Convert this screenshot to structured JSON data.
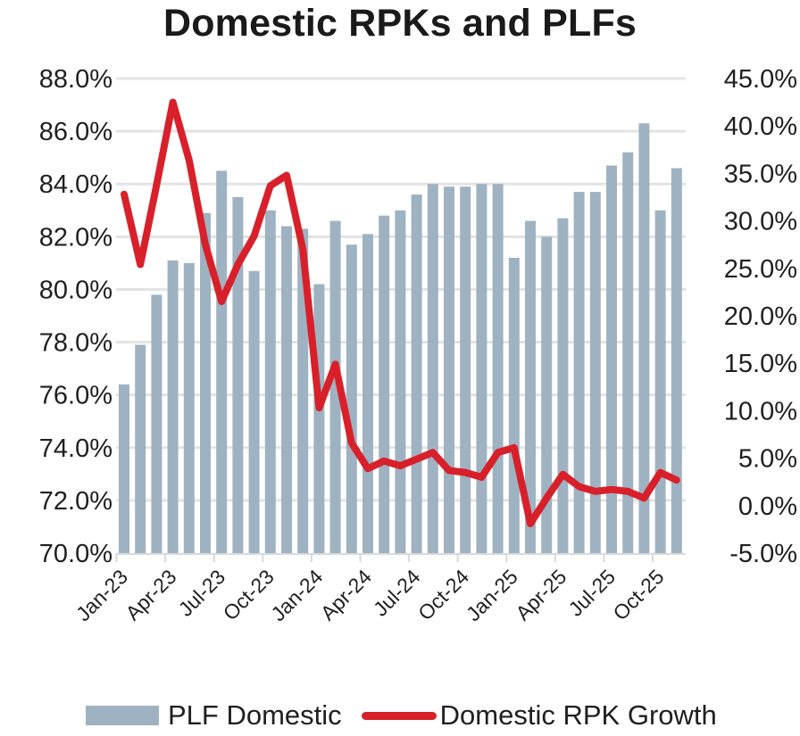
{
  "chart_data": {
    "type": "bar+line",
    "title": "Domestic RPKs and PLFs",
    "xlabel": "",
    "ylabel_left": "",
    "ylabel_right": "",
    "categories": [
      "Jan-23",
      "Feb-23",
      "Mar-23",
      "Apr-23",
      "May-23",
      "Jun-23",
      "Jul-23",
      "Aug-23",
      "Sep-23",
      "Oct-23",
      "Nov-23",
      "Dec-23",
      "Jan-24",
      "Feb-24",
      "Mar-24",
      "Apr-24",
      "May-24",
      "Jun-24",
      "Jul-24",
      "Aug-24",
      "Sep-24",
      "Oct-24",
      "Nov-24",
      "Dec-24",
      "Jan-25",
      "Feb-25",
      "Mar-25",
      "Apr-25",
      "May-25",
      "Jun-25",
      "Jul-25",
      "Aug-25",
      "Sep-25",
      "Oct-25",
      "Nov-25"
    ],
    "x_tick_labels": [
      "Jan-23",
      "Apr-23",
      "Jul-23",
      "Oct-23",
      "Jan-24",
      "Apr-24",
      "Jul-24",
      "Oct-24",
      "Jan-25",
      "Apr-25",
      "Jul-25",
      "Oct-25"
    ],
    "series": [
      {
        "name": "PLF Domestic",
        "type": "bar",
        "axis": "left",
        "color": "#9fb2c1",
        "values": [
          76.4,
          77.9,
          79.8,
          81.1,
          81.0,
          82.9,
          84.5,
          83.5,
          80.7,
          83.0,
          82.4,
          82.3,
          80.2,
          82.6,
          81.7,
          82.1,
          82.8,
          83.0,
          83.6,
          84.0,
          83.9,
          83.9,
          84.0,
          84.0,
          81.2,
          82.6,
          82.0,
          82.7,
          83.7,
          83.7,
          84.7,
          85.2,
          86.3,
          83.0,
          84.6
        ]
      },
      {
        "name": "Domestic RPK Growth",
        "type": "line",
        "axis": "right",
        "color": "#d8202b",
        "values": [
          32.8,
          25.4,
          33.8,
          42.5,
          36.4,
          27.5,
          21.5,
          25.4,
          28.4,
          33.7,
          34.8,
          27.0,
          10.3,
          14.9,
          6.6,
          3.9,
          4.7,
          4.2,
          4.9,
          5.6,
          3.7,
          3.5,
          3.0,
          5.6,
          6.1,
          -1.9,
          0.8,
          3.3,
          2.0,
          1.5,
          1.7,
          1.5,
          0.8,
          3.5,
          2.7
        ]
      }
    ],
    "y_left": {
      "ylim": [
        70.0,
        88.0
      ],
      "ticks": [
        70.0,
        72.0,
        74.0,
        76.0,
        78.0,
        80.0,
        82.0,
        84.0,
        86.0,
        88.0
      ],
      "tick_labels": [
        "70.0%",
        "72.0%",
        "74.0%",
        "76.0%",
        "78.0%",
        "80.0%",
        "82.0%",
        "84.0%",
        "86.0%",
        "88.0%"
      ]
    },
    "y_right": {
      "ylim": [
        -5.0,
        45.0
      ],
      "ticks": [
        -5,
        0,
        5,
        10,
        15,
        20,
        25,
        30,
        35,
        40,
        45
      ],
      "tick_labels": [
        "-5.0%",
        "0.0%",
        "5.0%",
        "10.0%",
        "15.0%",
        "20.0%",
        "25.0%",
        "30.0%",
        "35.0%",
        "40.0%",
        "45.0%"
      ]
    },
    "grid": "horizontal (left axis)",
    "legend": {
      "position": "bottom",
      "entries": [
        "PLF Domestic",
        "Domestic RPK Growth"
      ]
    }
  }
}
